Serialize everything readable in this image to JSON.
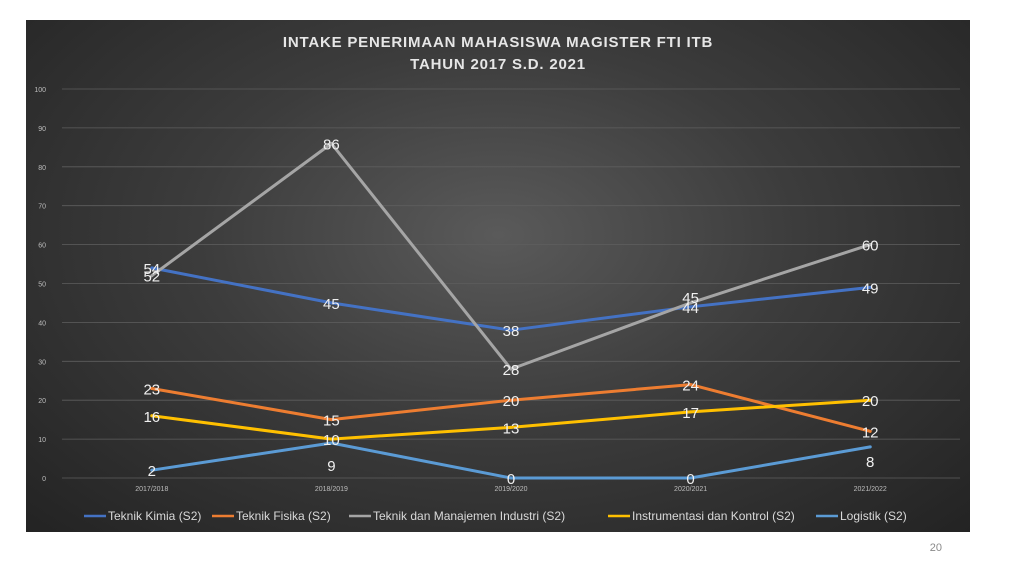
{
  "page_number": "20",
  "chart_data": {
    "type": "line",
    "title_lines": [
      "INTAKE PENERIMAAN MAHASISWA MAGISTER FTI ITB",
      "TAHUN 2017 S.D. 2021"
    ],
    "categories": [
      "2017/2018",
      "2018/2019",
      "2019/2020",
      "2020/2021",
      "2021/2022"
    ],
    "y_ticks": [
      "0",
      "10",
      "20",
      "30",
      "40",
      "50",
      "60",
      "70",
      "80",
      "90",
      "100"
    ],
    "ylim": [
      0,
      100
    ],
    "grid": true,
    "legend_position": "bottom",
    "series": [
      {
        "name": "Teknik Kimia (S2)",
        "color": "#4472c4",
        "values": [
          54,
          45,
          38,
          44,
          49
        ]
      },
      {
        "name": "Teknik Fisika (S2)",
        "color": "#ed7d31",
        "values": [
          23,
          15,
          20,
          24,
          12
        ]
      },
      {
        "name": "Teknik dan Manajemen Industri (S2)",
        "color": "#a5a5a5",
        "values": [
          52,
          86,
          28,
          45,
          60
        ]
      },
      {
        "name": "Instrumentasi dan Kontrol (S2)",
        "color": "#ffc000",
        "values": [
          16,
          10,
          13,
          17,
          20
        ]
      },
      {
        "name": "Logistik (S2)",
        "color": "#5b9bd5",
        "values": [
          2,
          9,
          0,
          0,
          8
        ]
      }
    ]
  }
}
